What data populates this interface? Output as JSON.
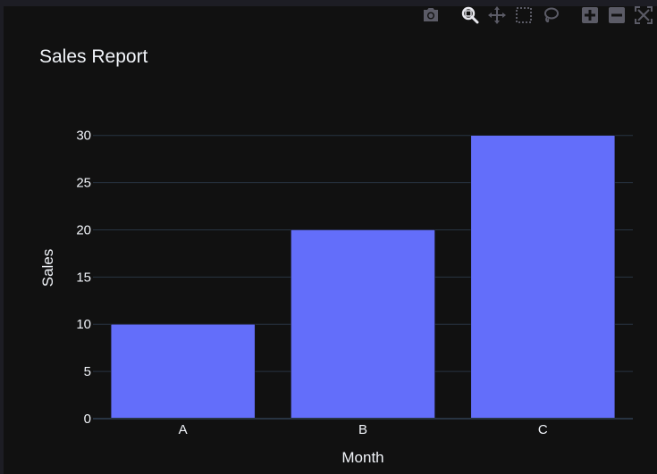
{
  "modebar": {
    "buttons": [
      {
        "name": "camera-icon",
        "active": false
      },
      {
        "name": "zoom-icon",
        "active": true
      },
      {
        "name": "pan-icon",
        "active": false
      },
      {
        "name": "box-select-icon",
        "active": false
      },
      {
        "name": "lasso-select-icon",
        "active": false
      },
      {
        "name": "zoom-in-icon",
        "active": false
      },
      {
        "name": "zoom-out-icon",
        "active": false
      },
      {
        "name": "autoscale-icon",
        "active": false
      }
    ]
  },
  "colors": {
    "bar": "#636efa",
    "grid": "#283442",
    "text": "#f2f5fa",
    "background": "#111111"
  },
  "chart_data": {
    "type": "bar",
    "title": "Sales Report",
    "xlabel": "Month",
    "ylabel": "Sales",
    "categories": [
      "A",
      "B",
      "C"
    ],
    "values": [
      10,
      20,
      30
    ],
    "ylim": [
      0,
      31.58
    ],
    "yticks": [
      0,
      5,
      10,
      15,
      20,
      25,
      30
    ],
    "grid": true,
    "legend": "none"
  }
}
